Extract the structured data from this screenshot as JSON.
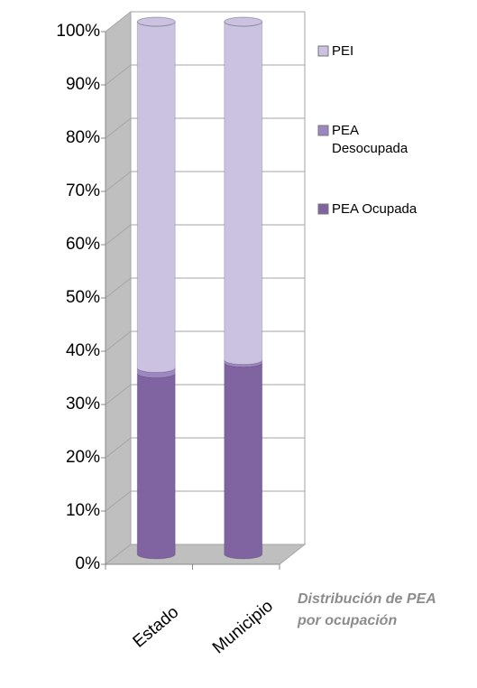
{
  "chart_data": {
    "type": "stacked_bar_3d",
    "annotation": "Distribución de PEA por ocupación",
    "categories": [
      "Estado",
      "Municipio"
    ],
    "series": [
      {
        "name": "PEA Ocupada",
        "color": "#8064a2",
        "values": [
          34,
          36
        ]
      },
      {
        "name": "PEA Desocupada",
        "color": "#9d87c2",
        "values": [
          1,
          0.5
        ]
      },
      {
        "name": "PEI",
        "color": "#cbc1e0",
        "values": [
          65,
          63.5
        ]
      }
    ],
    "ylim": [
      0,
      100
    ],
    "yticks": [
      {
        "value": 0,
        "label": "0%"
      },
      {
        "value": 10,
        "label": "10%"
      },
      {
        "value": 20,
        "label": "20%"
      },
      {
        "value": 30,
        "label": "30%"
      },
      {
        "value": 40,
        "label": "40%"
      },
      {
        "value": 50,
        "label": "50%"
      },
      {
        "value": 60,
        "label": "60%"
      },
      {
        "value": 70,
        "label": "70%"
      },
      {
        "value": 80,
        "label": "80%"
      },
      {
        "value": 90,
        "label": "90%"
      },
      {
        "value": 100,
        "label": "100%"
      }
    ],
    "grid": true,
    "legend": "right"
  }
}
